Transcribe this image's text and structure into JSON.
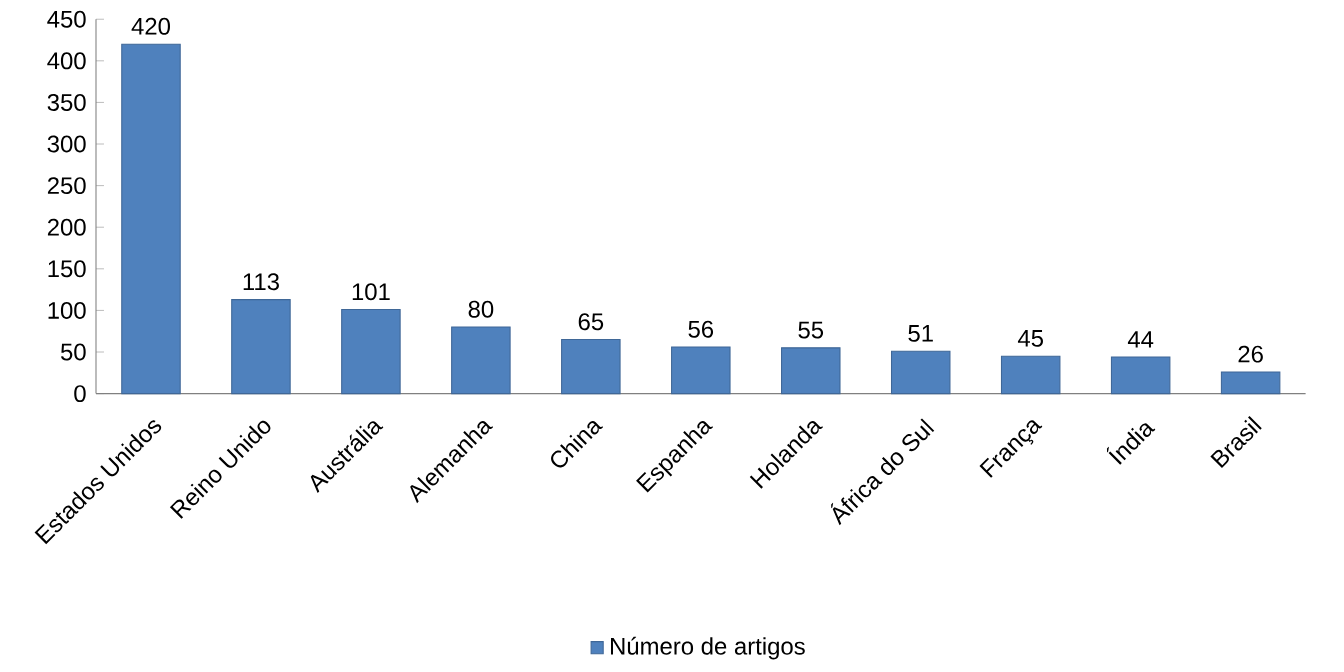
{
  "chart_data": {
    "type": "bar",
    "categories": [
      "Estados Unidos",
      "Reino Unido",
      "Austrália",
      "Alemanha",
      "China",
      "Espanha",
      "Holanda",
      "África do Sul",
      "França",
      "Índia",
      "Brasil"
    ],
    "series": [
      {
        "name": "Número de artigos",
        "color": "#4f81bd",
        "values": [
          420,
          113,
          101,
          80,
          65,
          56,
          55,
          51,
          45,
          44,
          26
        ]
      }
    ],
    "ylim": [
      0,
      450
    ],
    "yticks": [
      0,
      50,
      100,
      150,
      200,
      250,
      300,
      350,
      400,
      450
    ],
    "data_labels": true,
    "legend": "bottom",
    "grid": false
  }
}
